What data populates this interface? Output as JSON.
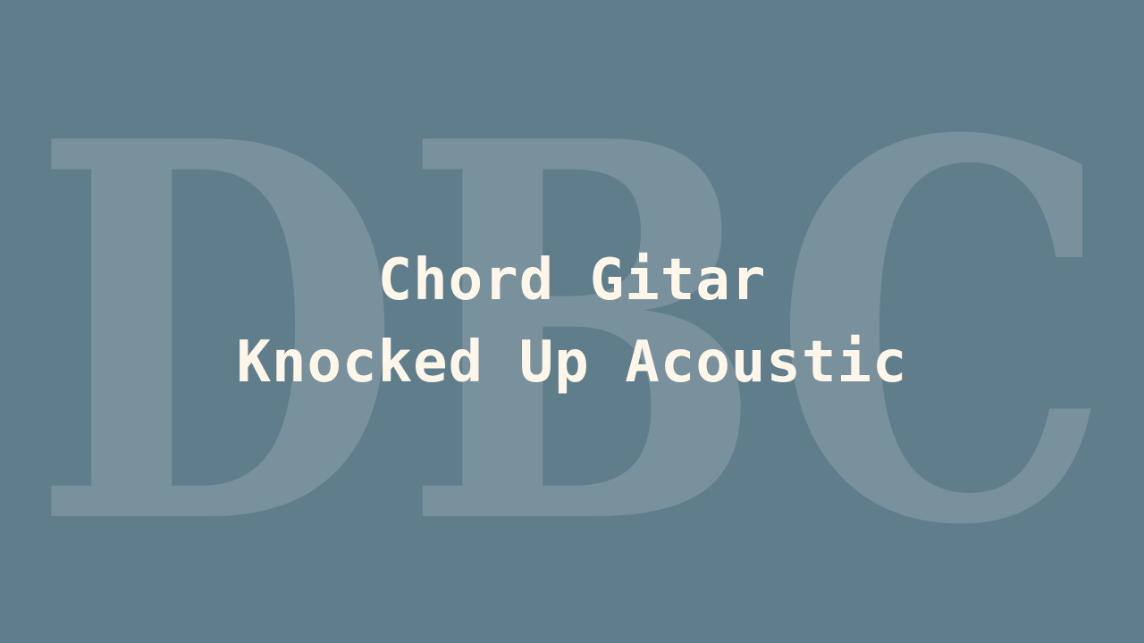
{
  "background_color": "#607d8b",
  "watermark": {
    "text": "DBC",
    "color": "#ffffff",
    "opacity": 0.16
  },
  "title": {
    "line1": "Chord Gitar",
    "line2": "Knocked Up Acoustic",
    "color": "#fdf6e9"
  }
}
